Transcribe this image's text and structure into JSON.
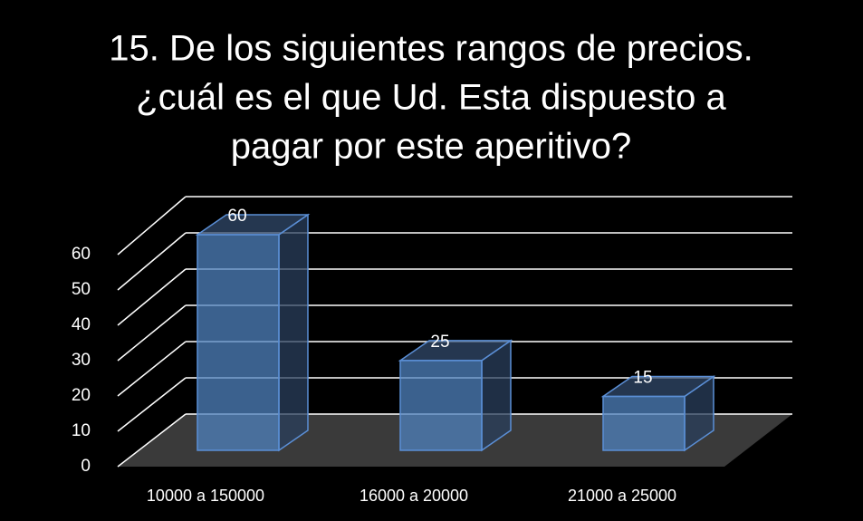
{
  "chart_data": {
    "type": "bar3d",
    "title": [
      "15. De los siguientes rangos de precios.",
      "¿cuál es el que Ud. Esta dispuesto a",
      "pagar por este aperitivo?"
    ],
    "categories": [
      "10000 a 150000",
      "16000 a 20000",
      "21000 a 25000"
    ],
    "values": [
      60,
      25,
      15
    ],
    "color": "#4f81bd",
    "ylim": [
      0,
      60
    ],
    "yticks": [
      0,
      10,
      20,
      30,
      40,
      50,
      60
    ],
    "grid": true
  }
}
